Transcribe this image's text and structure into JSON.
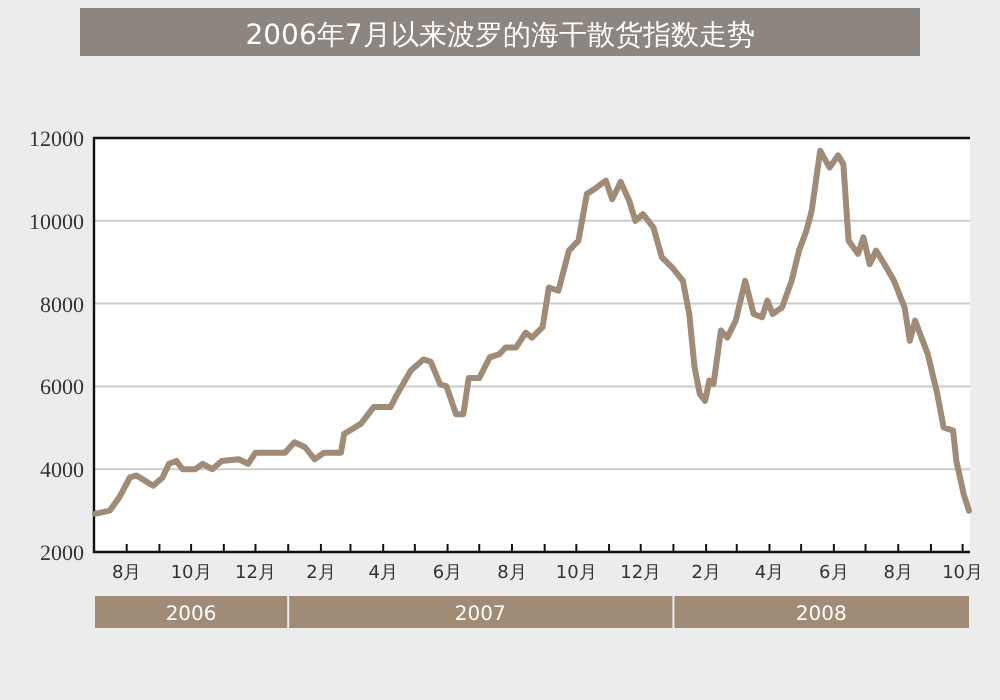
{
  "chart_data": {
    "type": "line",
    "title": "2006年7月以来波罗的海干散货指数走势",
    "xlim": [
      "2006-07-01",
      "2008-10-08"
    ],
    "xticks": [
      {
        "value": "2006-08-01",
        "label": "8月"
      },
      {
        "value": "2006-09-01",
        "label": null
      },
      {
        "value": "2006-10-01",
        "label": "10月"
      },
      {
        "value": "2006-11-01",
        "label": null
      },
      {
        "value": "2006-12-01",
        "label": "12月"
      },
      {
        "value": "2007-01-01",
        "label": null
      },
      {
        "value": "2007-02-01",
        "label": "2月"
      },
      {
        "value": "2007-03-01",
        "label": null
      },
      {
        "value": "2007-04-01",
        "label": "4月"
      },
      {
        "value": "2007-05-01",
        "label": null
      },
      {
        "value": "2007-06-01",
        "label": "6月"
      },
      {
        "value": "2007-07-01",
        "label": null
      },
      {
        "value": "2007-08-01",
        "label": "8月"
      },
      {
        "value": "2007-09-01",
        "label": null
      },
      {
        "value": "2007-10-01",
        "label": "10月"
      },
      {
        "value": "2007-11-01",
        "label": null
      },
      {
        "value": "2007-12-01",
        "label": "12月"
      },
      {
        "value": "2008-01-01",
        "label": null
      },
      {
        "value": "2008-02-01",
        "label": "2月"
      },
      {
        "value": "2008-03-01",
        "label": null
      },
      {
        "value": "2008-04-01",
        "label": "4月"
      },
      {
        "value": "2008-05-01",
        "label": null
      },
      {
        "value": "2008-06-01",
        "label": "6月"
      },
      {
        "value": "2008-07-01",
        "label": null
      },
      {
        "value": "2008-08-01",
        "label": "8月"
      },
      {
        "value": "2008-09-01",
        "label": null
      },
      {
        "value": "2008-10-01",
        "label": "10月"
      }
    ],
    "x2lim": [
      "2006-07-01",
      "2008-10-08"
    ],
    "x2ticks": [
      {
        "value": "2006-10-01",
        "label": "2006"
      },
      {
        "value": "2007-07-02",
        "label": "2007"
      },
      {
        "value": "2008-05-20",
        "label": "2008"
      }
    ],
    "ylim": [
      2000,
      12000
    ],
    "yticks": [
      2000,
      4000,
      6000,
      8000,
      10000,
      12000
    ],
    "grid": "y",
    "series": [
      {
        "color": "#a08b77",
        "x": [
          "2006-07-02",
          "2006-07-16",
          "2006-07-25",
          "2006-08-04",
          "2006-08-10",
          "2006-08-26",
          "2006-09-04",
          "2006-09-10",
          "2006-09-17",
          "2006-09-23",
          "2006-10-05",
          "2006-10-12",
          "2006-10-21",
          "2006-10-30",
          "2006-11-15",
          "2006-11-24",
          "2006-12-01",
          "2006-12-10",
          "2006-12-29",
          "2007-01-07",
          "2007-01-17",
          "2007-01-26",
          "2007-02-04",
          "2007-02-20",
          "2007-02-23",
          "2007-03-11",
          "2007-03-23",
          "2007-04-08",
          "2007-04-14",
          "2007-04-27",
          "2007-05-09",
          "2007-05-16",
          "2007-05-25",
          "2007-05-31",
          "2007-06-09",
          "2007-06-16",
          "2007-06-21",
          "2007-07-01",
          "2007-07-11",
          "2007-07-20",
          "2007-07-26",
          "2007-08-05",
          "2007-08-14",
          "2007-08-20",
          "2007-08-30",
          "2007-09-05",
          "2007-09-14",
          "2007-09-24",
          "2007-10-03",
          "2007-10-11",
          "2007-10-20",
          "2007-10-29",
          "2007-11-04",
          "2007-11-12",
          "2007-11-20",
          "2007-11-26",
          "2007-12-03",
          "2007-12-13",
          "2007-12-21",
          "2007-12-31",
          "2008-01-10",
          "2008-01-16",
          "2008-01-21",
          "2008-01-26",
          "2008-01-31",
          "2008-02-04",
          "2008-02-08",
          "2008-02-15",
          "2008-02-21",
          "2008-02-29",
          "2008-03-09",
          "2008-03-17",
          "2008-03-25",
          "2008-03-30",
          "2008-04-04",
          "2008-04-13",
          "2008-04-22",
          "2008-04-29",
          "2008-05-06",
          "2008-05-11",
          "2008-05-19",
          "2008-05-28",
          "2008-06-05",
          "2008-06-10",
          "2008-06-15",
          "2008-06-24",
          "2008-06-29",
          "2008-07-05",
          "2008-07-11",
          "2008-07-19",
          "2008-07-28",
          "2008-08-07",
          "2008-08-12",
          "2008-08-17",
          "2008-08-23",
          "2008-08-29",
          "2008-09-07",
          "2008-09-13",
          "2008-09-22",
          "2008-09-25",
          "2008-10-02",
          "2008-10-07"
        ],
        "values": [
          2920,
          3000,
          3320,
          3800,
          3850,
          3600,
          3800,
          4130,
          4200,
          4000,
          4000,
          4130,
          4000,
          4200,
          4240,
          4130,
          4400,
          4400,
          4400,
          4650,
          4530,
          4240,
          4400,
          4400,
          4850,
          5100,
          5500,
          5500,
          5800,
          6380,
          6650,
          6600,
          6050,
          6000,
          5330,
          5330,
          6200,
          6200,
          6700,
          6780,
          6940,
          6940,
          7300,
          7180,
          7430,
          8390,
          8310,
          9280,
          9520,
          10650,
          10800,
          10970,
          10520,
          10940,
          10490,
          10000,
          10160,
          9840,
          9120,
          8870,
          8550,
          7750,
          6460,
          5820,
          5650,
          6140,
          6060,
          7350,
          7180,
          7590,
          8550,
          7750,
          7670,
          8070,
          7750,
          7910,
          8550,
          9280,
          9760,
          10240,
          11690,
          11290,
          11580,
          11370,
          9520,
          9200,
          9600,
          8950,
          9280,
          8950,
          8550,
          7910,
          7100,
          7590,
          7180,
          6780,
          5820,
          5010,
          4930,
          4210,
          3400,
          3000
        ]
      }
    ]
  }
}
